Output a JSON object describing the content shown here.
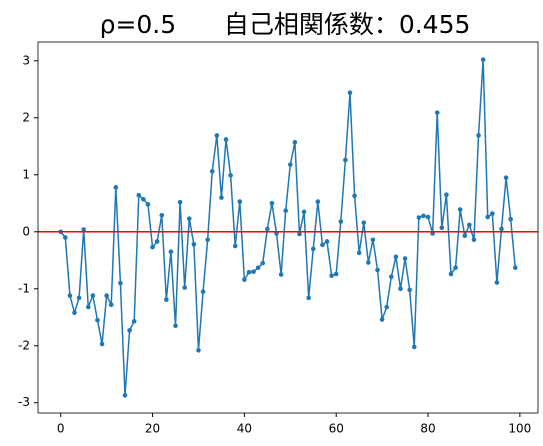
{
  "chart_data": {
    "type": "line",
    "title": "ρ=0.5      自己相関係数：0.455",
    "x": [
      0,
      1,
      2,
      3,
      4,
      5,
      6,
      7,
      8,
      9,
      10,
      11,
      12,
      13,
      14,
      15,
      16,
      17,
      18,
      19,
      20,
      21,
      22,
      23,
      24,
      25,
      26,
      27,
      28,
      29,
      30,
      31,
      32,
      33,
      34,
      35,
      36,
      37,
      38,
      39,
      40,
      41,
      42,
      43,
      44,
      45,
      46,
      47,
      48,
      49,
      50,
      51,
      52,
      53,
      54,
      55,
      56,
      57,
      58,
      59,
      60,
      61,
      62,
      63,
      64,
      65,
      66,
      67,
      68,
      69,
      70,
      71,
      72,
      73,
      74,
      75,
      76,
      77,
      78,
      79,
      80,
      81,
      82,
      83,
      84,
      85,
      86,
      87,
      88,
      89,
      90,
      91,
      92,
      93,
      94,
      95,
      96,
      97,
      98,
      99
    ],
    "series": [
      {
        "color": "#1f77b4",
        "values": [
          0.0,
          -0.1,
          -1.12,
          -1.42,
          -1.16,
          0.04,
          -1.32,
          -1.12,
          -1.55,
          -1.97,
          -1.12,
          -1.28,
          0.78,
          -0.9,
          -2.87,
          -1.73,
          -1.57,
          0.64,
          0.57,
          0.48,
          -0.27,
          -0.17,
          0.29,
          -1.19,
          -0.35,
          -1.65,
          0.52,
          -0.98,
          0.23,
          -0.22,
          -2.08,
          -1.05,
          -0.14,
          1.06,
          1.69,
          0.6,
          1.62,
          0.99,
          -0.25,
          0.53,
          -0.84,
          -0.71,
          -0.7,
          -0.63,
          -0.55,
          0.05,
          0.5,
          -0.03,
          -0.75,
          0.37,
          1.18,
          1.57,
          -0.04,
          0.35,
          -1.16,
          -0.3,
          0.53,
          -0.23,
          -0.17,
          -0.77,
          -0.74,
          0.18,
          1.26,
          2.44,
          0.63,
          -0.37,
          0.16,
          -0.54,
          -0.14,
          -0.67,
          -1.54,
          -1.32,
          -0.79,
          -0.44,
          -1.0,
          -0.47,
          -1.02,
          -2.02,
          0.25,
          0.28,
          0.26,
          -0.03,
          2.09,
          0.07,
          0.65,
          -0.74,
          -0.63,
          0.39,
          -0.07,
          0.12,
          -0.14,
          1.69,
          3.02,
          0.26,
          0.32,
          -0.89,
          0.05,
          0.95,
          0.22,
          -0.63
        ]
      }
    ],
    "hline": {
      "value": 0,
      "color": "#ff0000"
    },
    "xlim": [
      -4.95,
      103.95
    ],
    "xticks": [
      0,
      20,
      40,
      60,
      80,
      100
    ],
    "ylim": [
      -3.18,
      3.33
    ],
    "yticks": [
      -3,
      -2,
      -1,
      0,
      1,
      2,
      3
    ]
  }
}
